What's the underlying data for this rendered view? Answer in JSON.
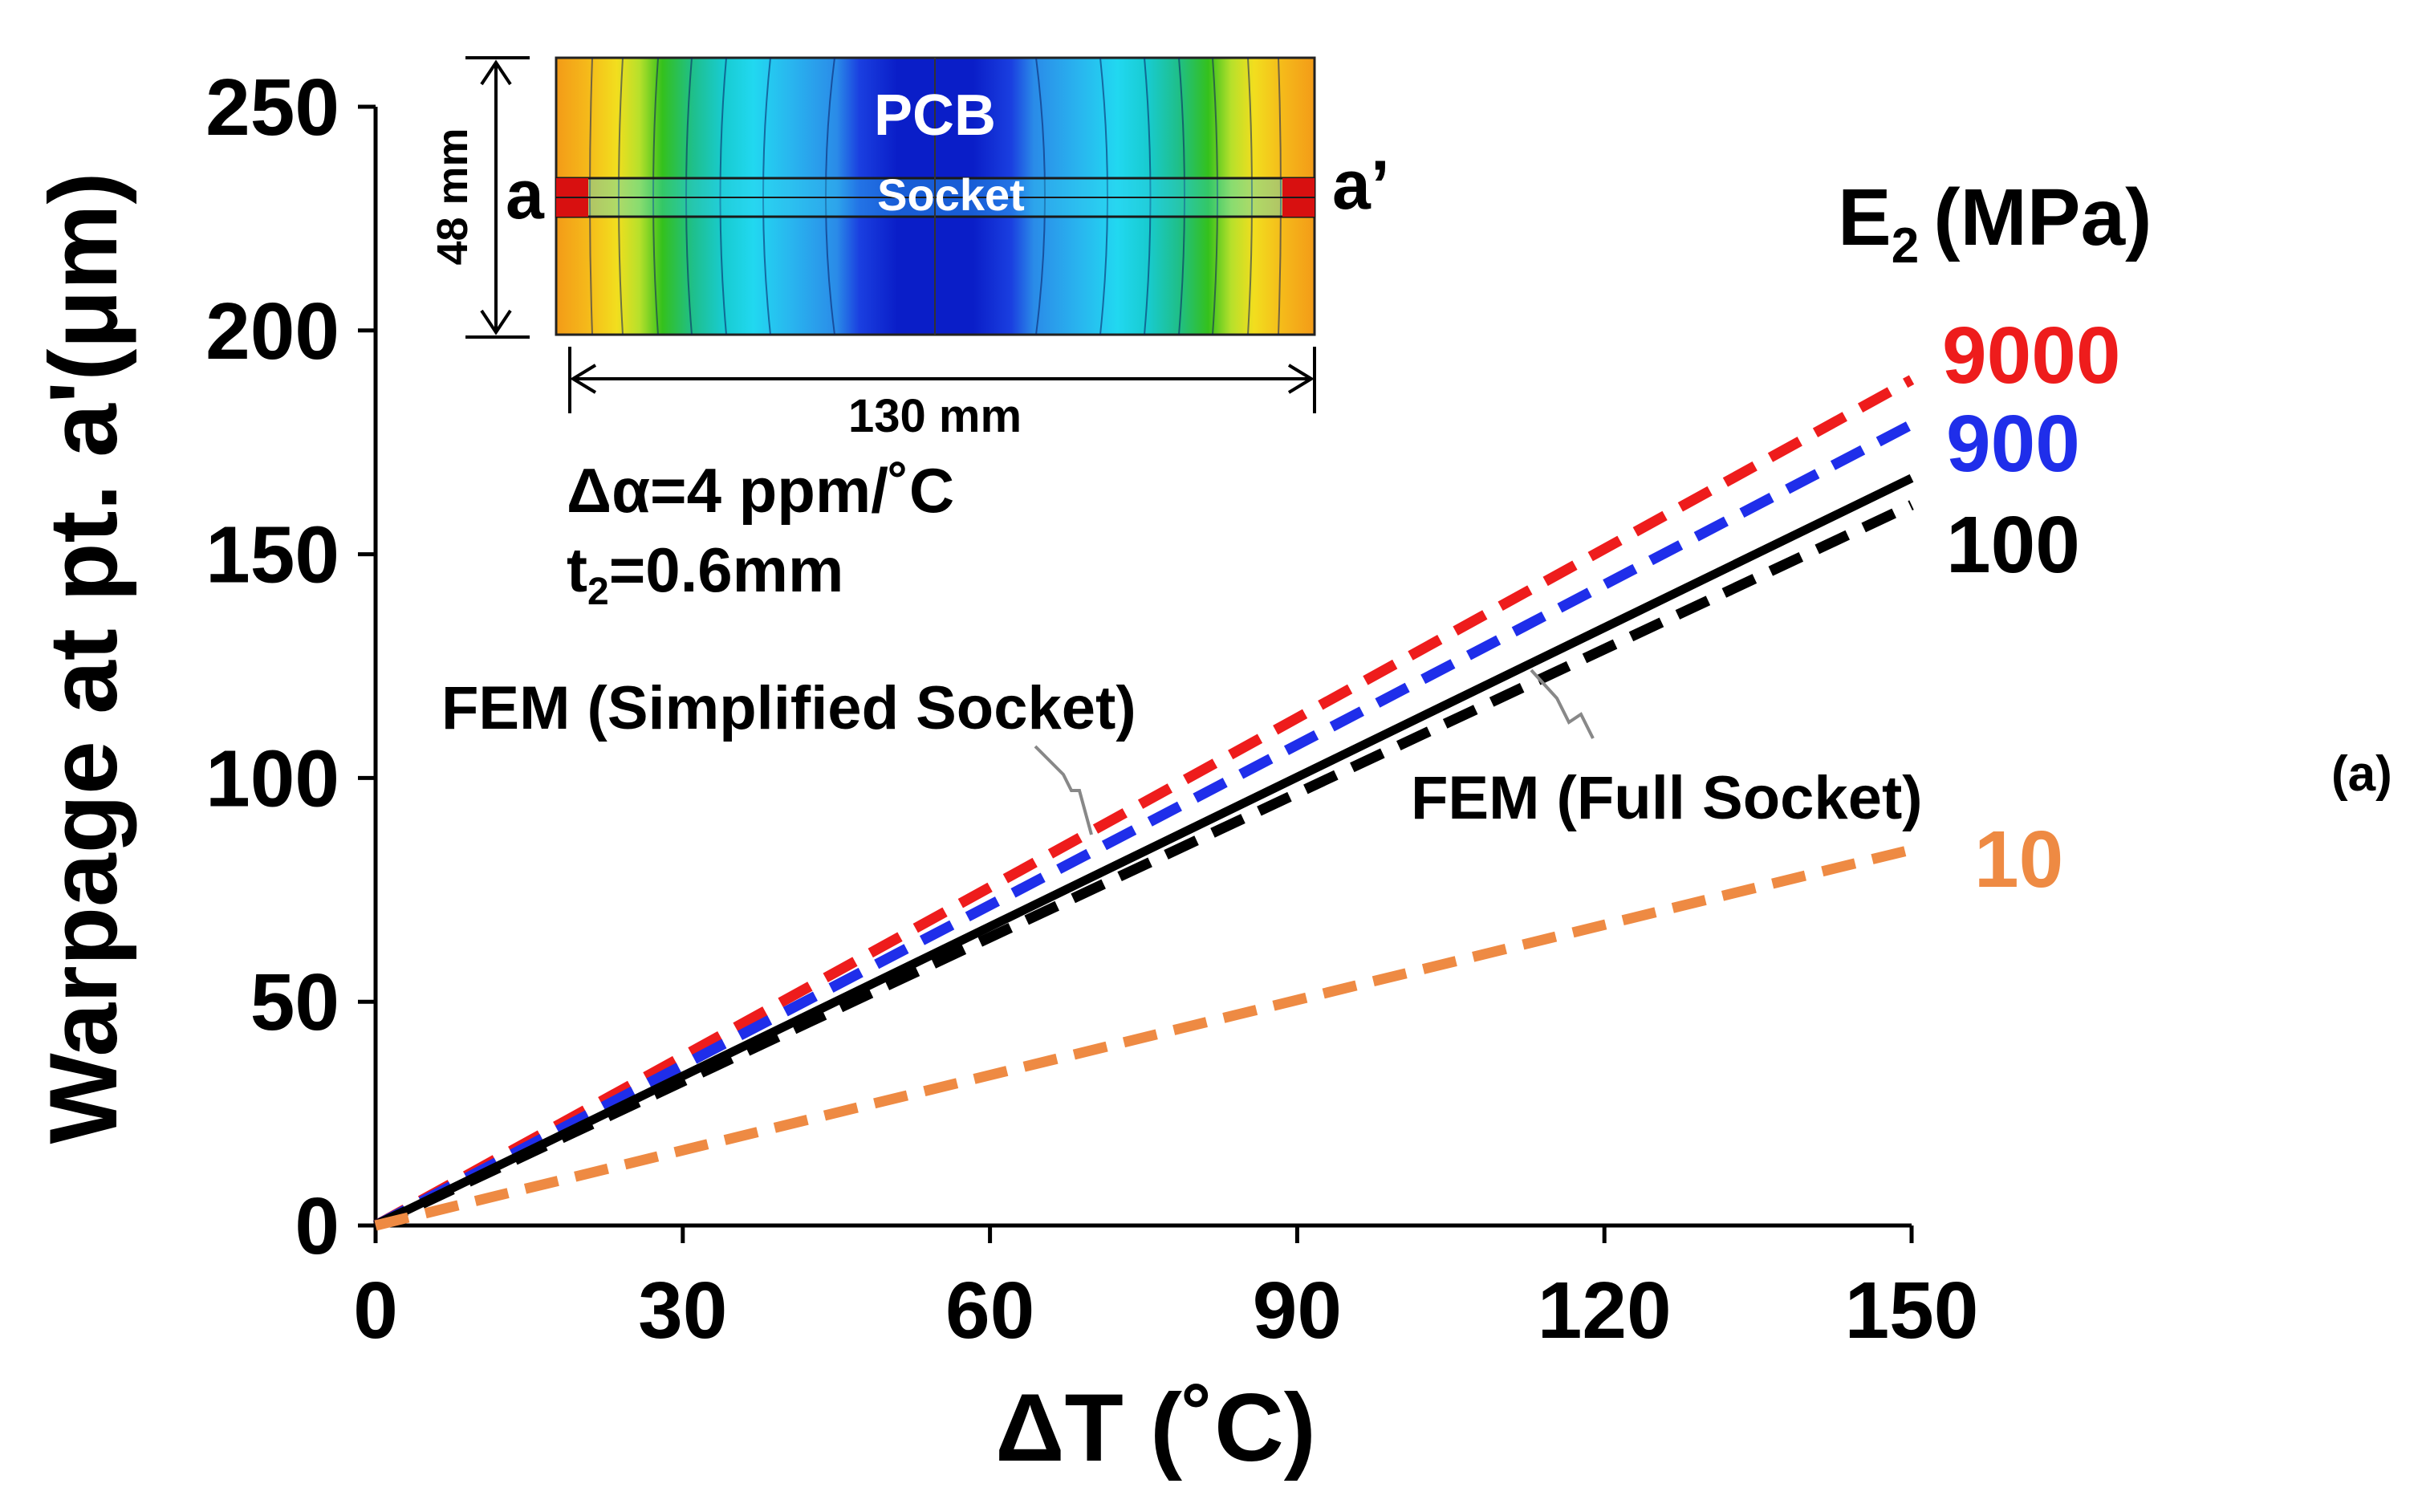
{
  "chart_data": {
    "type": "line",
    "xlabel": "ΔT (˚C)",
    "ylabel": "Warpage at pt. a'(μm)",
    "xlim": [
      0,
      150
    ],
    "ylim": [
      0,
      250
    ],
    "xticks": [
      0,
      30,
      60,
      90,
      120,
      150
    ],
    "yticks": [
      0,
      50,
      100,
      150,
      200,
      250
    ],
    "legend_title": "E",
    "legend_title_sub": "2",
    "legend_title_unit": "(MPa)",
    "series": [
      {
        "name": "9000",
        "method": "FEM (Simplified Socket)",
        "style": "dashed",
        "color": "#ee1c1c",
        "x": [
          0,
          150
        ],
        "y": [
          0,
          189
        ]
      },
      {
        "name": "900",
        "method": "FEM (Simplified Socket)",
        "style": "dashed",
        "color": "#1f2eea",
        "x": [
          0,
          150
        ],
        "y": [
          0,
          179
        ]
      },
      {
        "name": "100",
        "method": "FEM (Simplified Socket)",
        "style": "dashed",
        "color": "#000000",
        "x": [
          0,
          150
        ],
        "y": [
          0,
          161
        ]
      },
      {
        "name": "100",
        "method": "FEM (Full Socket)",
        "style": "solid",
        "color": "#000000",
        "x": [
          0,
          150
        ],
        "y": [
          0,
          167
        ]
      },
      {
        "name": "10",
        "method": "FEM (Simplified Socket)",
        "style": "dashed",
        "color": "#ee8a43",
        "x": [
          0,
          150
        ],
        "y": [
          0,
          84
        ]
      }
    ],
    "annotations": {
      "simplified": "FEM (Simplified Socket)",
      "full": "FEM (Full Socket)",
      "delta_alpha": "Δα=4 ppm/˚C",
      "thickness_prefix": "t",
      "thickness_sub": "2",
      "thickness_value": "=0.6mm"
    },
    "inset": {
      "label_pcb": "PCB",
      "label_socket": "Socket",
      "point_left": "a",
      "point_right": "a’",
      "height_dim": "48 mm",
      "width_dim": "130 mm"
    },
    "panel_label": "(a)"
  }
}
